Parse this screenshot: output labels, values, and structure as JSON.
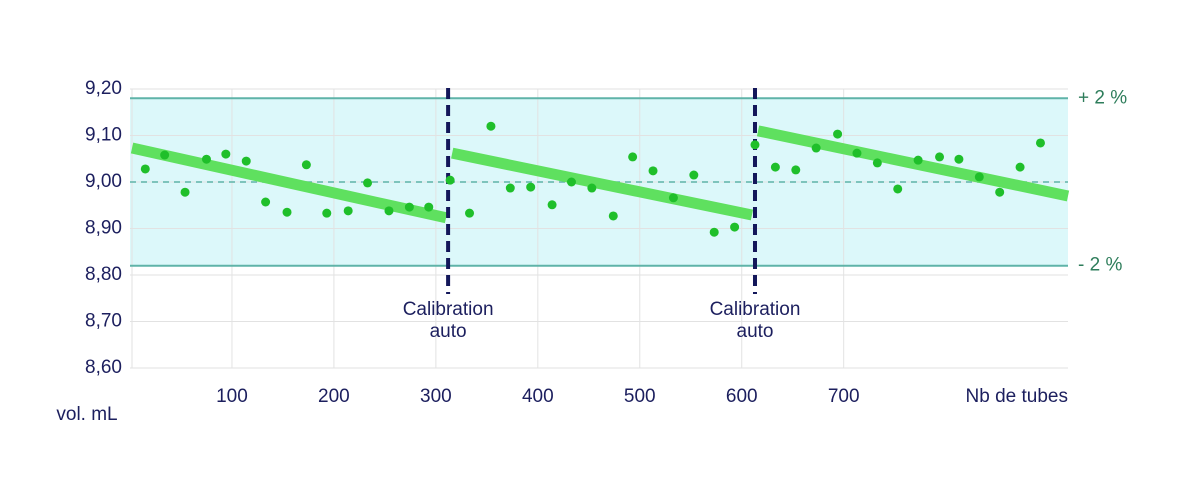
{
  "chart_data": {
    "type": "scatter",
    "ylabel": "vol. mL",
    "xlabel": "Nb de tubes",
    "xlim": [
      0,
      920
    ],
    "ylim": [
      8.6,
      9.2
    ],
    "xticks": [
      100,
      200,
      300,
      400,
      500,
      600,
      700
    ],
    "yticks": [
      {
        "value": 8.6,
        "label": "8,60"
      },
      {
        "value": 8.7,
        "label": "8,70"
      },
      {
        "value": 8.8,
        "label": "8,80"
      },
      {
        "value": 8.9,
        "label": "8,90"
      },
      {
        "value": 9.0,
        "label": "9,00"
      },
      {
        "value": 9.1,
        "label": "9,10"
      },
      {
        "value": 9.2,
        "label": "9,20"
      }
    ],
    "grid": true,
    "band": {
      "upper": 9.18,
      "lower": 8.82,
      "upper_label": "+ 2 %",
      "lower_label": "- 2 %",
      "color": "#dcf8fa",
      "line_color": "#5fb3a8"
    },
    "reference": 9.0,
    "calibrations": [
      {
        "x": 312,
        "label": [
          "Calibration",
          "auto"
        ]
      },
      {
        "x": 613,
        "label": [
          "Calibration",
          "auto"
        ]
      }
    ],
    "trend_color": "#5fe05f",
    "trends": [
      {
        "x": [
          2,
          310
        ],
        "y": [
          9.073,
          8.923
        ]
      },
      {
        "x": [
          316,
          610
        ],
        "y": [
          9.062,
          8.929
        ]
      },
      {
        "x": [
          616,
          920
        ],
        "y": [
          9.11,
          8.97
        ]
      }
    ],
    "color": "#1fbf2a",
    "x": [
      15,
      34,
      54,
      75,
      94,
      114,
      133,
      154,
      173,
      193,
      214,
      233,
      254,
      274,
      293,
      314,
      333,
      354,
      373,
      393,
      414,
      433,
      453,
      474,
      493,
      513,
      533,
      553,
      573,
      593,
      613,
      633,
      653,
      673,
      694,
      713,
      733,
      753,
      773,
      794,
      813,
      833,
      853,
      873,
      893
    ],
    "values": [
      9.028,
      9.058,
      8.978,
      9.049,
      9.06,
      9.045,
      8.957,
      8.935,
      9.037,
      8.933,
      8.938,
      8.998,
      8.938,
      8.946,
      8.946,
      9.004,
      8.933,
      9.12,
      8.987,
      8.989,
      8.951,
      9.0,
      8.987,
      8.927,
      9.054,
      9.024,
      8.966,
      9.015,
      8.892,
      8.903,
      9.08,
      9.032,
      9.026,
      9.073,
      9.103,
      9.062,
      9.041,
      8.985,
      9.047,
      9.054,
      9.049,
      9.011,
      8.978,
      9.032,
      9.084
    ]
  }
}
